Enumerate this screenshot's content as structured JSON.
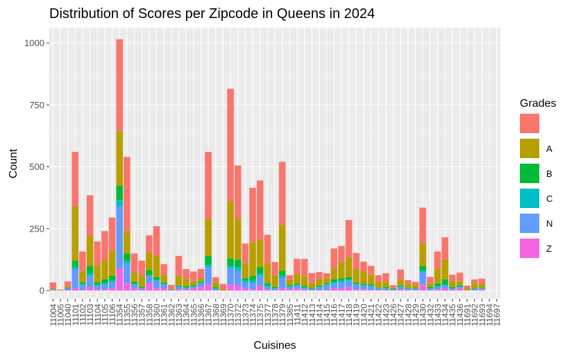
{
  "chart_data": {
    "type": "bar",
    "stacked": true,
    "title": "Distribution of Scores per Zipcode in Queens in 2024",
    "xlabel": "Cuisines",
    "ylabel": "Count",
    "ylim": [
      0,
      1070
    ],
    "yticks": [
      0,
      250,
      500,
      750,
      1000
    ],
    "grid": true,
    "legend": {
      "title": "Grades",
      "placement": "right",
      "entries": [
        {
          "label": "",
          "color": "#F8766D"
        },
        {
          "label": "A",
          "color": "#B79F00"
        },
        {
          "label": "B",
          "color": "#00BA38"
        },
        {
          "label": "C",
          "color": "#00BFC4"
        },
        {
          "label": "N",
          "color": "#619CFF"
        },
        {
          "label": "Z",
          "color": "#F564E3"
        }
      ]
    },
    "categories": [
      "11004",
      "11005",
      "11040",
      "11101",
      "11102",
      "11103",
      "11104",
      "11105",
      "11106",
      "11354",
      "11355",
      "11356",
      "11357",
      "11358",
      "11360",
      "11361",
      "11362",
      "11363",
      "11364",
      "11365",
      "11366",
      "11367",
      "11368",
      "11369",
      "11370",
      "11372",
      "11373",
      "11374",
      "11375",
      "11377",
      "11378",
      "11379",
      "11385",
      "11411",
      "11412",
      "11413",
      "11414",
      "11415",
      "11416",
      "11417",
      "11418",
      "11419",
      "11420",
      "11421",
      "11422",
      "11423",
      "11426",
      "11427",
      "11428",
      "11429",
      "11430",
      "11432",
      "11433",
      "11434",
      "11435",
      "11436",
      "11691",
      "11692",
      "11693",
      "11694",
      "11697"
    ],
    "series": [
      {
        "name": "",
        "values": [
          25,
          2,
          20,
          220,
          80,
          165,
          95,
          115,
          135,
          370,
          300,
          75,
          60,
          70,
          120,
          45,
          15,
          80,
          40,
          40,
          35,
          270,
          20,
          20,
          455,
          215,
          80,
          220,
          240,
          115,
          55,
          255,
          20,
          60,
          70,
          40,
          30,
          20,
          80,
          65,
          150,
          65,
          40,
          35,
          25,
          35,
          10,
          40,
          15,
          10,
          145,
          25,
          70,
          90,
          25,
          35,
          10,
          15,
          20,
          0,
          0
        ]
      },
      {
        "name": "A",
        "values": [
          3,
          1,
          5,
          220,
          45,
          120,
          70,
          80,
          100,
          220,
          90,
          40,
          45,
          70,
          85,
          30,
          5,
          40,
          30,
          15,
          15,
          150,
          20,
          7,
          230,
          165,
          60,
          135,
          110,
          80,
          45,
          185,
          20,
          40,
          40,
          20,
          25,
          20,
          45,
          65,
          80,
          55,
          50,
          40,
          25,
          20,
          5,
          25,
          15,
          15,
          90,
          15,
          60,
          80,
          25,
          15,
          8,
          20,
          15,
          0,
          0
        ]
      },
      {
        "name": "B",
        "values": [
          1,
          0,
          2,
          25,
          7,
          30,
          10,
          15,
          20,
          60,
          30,
          8,
          5,
          20,
          10,
          5,
          0,
          2,
          5,
          5,
          5,
          35,
          5,
          0,
          30,
          30,
          10,
          20,
          25,
          10,
          5,
          20,
          5,
          5,
          5,
          3,
          5,
          5,
          10,
          10,
          10,
          5,
          5,
          5,
          3,
          5,
          1,
          3,
          3,
          2,
          20,
          5,
          10,
          20,
          5,
          5,
          0,
          2,
          2,
          0,
          0
        ]
      },
      {
        "name": "C",
        "values": [
          0,
          0,
          0,
          10,
          3,
          10,
          3,
          5,
          5,
          25,
          10,
          2,
          1,
          3,
          5,
          2,
          0,
          3,
          2,
          2,
          2,
          10,
          2,
          0,
          10,
          15,
          5,
          10,
          10,
          5,
          2,
          10,
          2,
          3,
          3,
          1,
          2,
          2,
          5,
          5,
          5,
          2,
          2,
          2,
          1,
          2,
          1,
          2,
          1,
          1,
          5,
          2,
          3,
          5,
          1,
          2,
          0,
          1,
          1,
          0,
          0
        ]
      },
      {
        "name": "N",
        "values": [
          3,
          1,
          8,
          75,
          20,
          45,
          15,
          20,
          25,
          250,
          80,
          15,
          5,
          30,
          30,
          15,
          3,
          10,
          5,
          5,
          15,
          70,
          5,
          0,
          65,
          60,
          25,
          25,
          40,
          10,
          5,
          40,
          10,
          10,
          5,
          5,
          10,
          20,
          20,
          25,
          25,
          20,
          15,
          15,
          5,
          5,
          5,
          10,
          5,
          5,
          50,
          5,
          10,
          10,
          5,
          5,
          0,
          5,
          5,
          0,
          0
        ]
      },
      {
        "name": "Z",
        "values": [
          1,
          0,
          2,
          10,
          3,
          15,
          5,
          5,
          10,
          90,
          30,
          10,
          5,
          30,
          10,
          10,
          0,
          5,
          5,
          10,
          15,
          25,
          2,
          0,
          25,
          20,
          10,
          5,
          20,
          5,
          3,
          10,
          5,
          10,
          5,
          2,
          3,
          3,
          10,
          10,
          15,
          5,
          5,
          3,
          3,
          3,
          0,
          5,
          3,
          2,
          25,
          3,
          5,
          10,
          3,
          10,
          2,
          2,
          5,
          0,
          0
        ]
      }
    ]
  }
}
